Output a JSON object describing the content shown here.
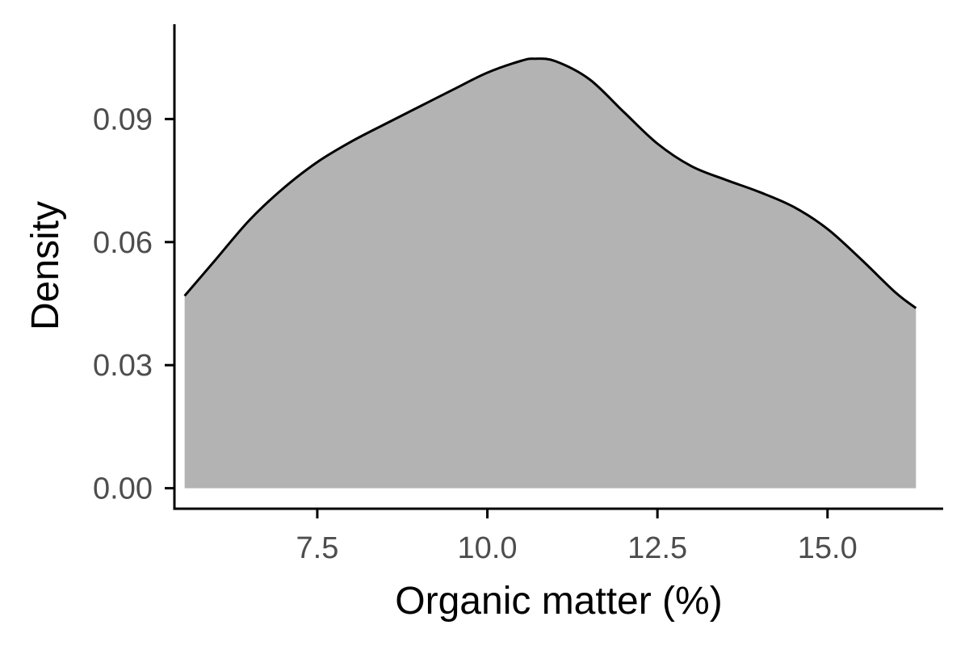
{
  "chart_data": {
    "type": "area",
    "title": "",
    "xlabel": "Organic matter (%)",
    "ylabel": "Density",
    "xlim": [
      5.4,
      16.7
    ],
    "ylim": [
      -0.005,
      0.1135
    ],
    "x_ticks": [
      7.5,
      10.0,
      12.5,
      15.0
    ],
    "x_tick_labels": [
      "7.5",
      "10.0",
      "12.5",
      "15.0"
    ],
    "y_ticks": [
      0.0,
      0.03,
      0.06,
      0.09
    ],
    "y_tick_labels": [
      "0.00",
      "0.03",
      "0.06",
      "0.09"
    ],
    "grid": false,
    "legend": "none",
    "colors": {
      "fill": "#b3b3b3",
      "line": "#000000",
      "axis": "#000000",
      "tick_label": "#4d4d4d"
    },
    "series": [
      {
        "x": [
          5.55,
          6.0,
          6.5,
          7.0,
          7.5,
          8.0,
          8.5,
          9.0,
          9.5,
          10.0,
          10.5,
          10.7,
          11.0,
          11.5,
          12.0,
          12.5,
          13.0,
          13.5,
          14.0,
          14.5,
          15.0,
          15.5,
          16.0,
          16.3
        ],
        "y": [
          0.0469,
          0.0556,
          0.0653,
          0.0731,
          0.0795,
          0.0845,
          0.0888,
          0.093,
          0.0972,
          0.1013,
          0.1042,
          0.1047,
          0.1041,
          0.0997,
          0.0918,
          0.084,
          0.0785,
          0.0752,
          0.0722,
          0.0686,
          0.0632,
          0.0557,
          0.0477,
          0.0439
        ]
      }
    ]
  }
}
